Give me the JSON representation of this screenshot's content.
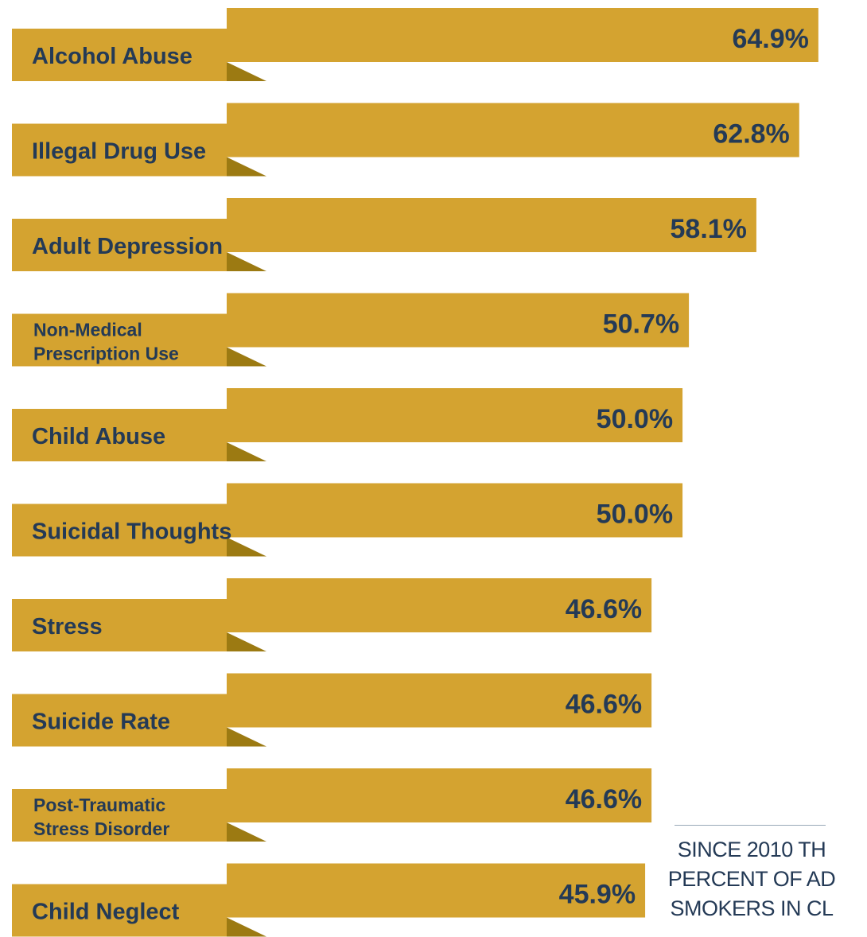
{
  "colors": {
    "bar": "#D4A330",
    "fold": "#9C7A12",
    "text": "#243A56",
    "rule": "#9AA9B8"
  },
  "chart_data": {
    "type": "bar",
    "orientation": "horizontal",
    "title": "",
    "xlabel": "",
    "ylabel": "",
    "xlim": [
      0,
      65
    ],
    "legend": "none",
    "grid": false,
    "categories": [
      "Alcohol Abuse",
      "Illegal Drug Use",
      "Adult Depression",
      "Non-Medical Prescription Use",
      "Child Abuse",
      "Suicidal Thoughts",
      "Stress",
      "Suicide Rate",
      "Post-Traumatic Stress Disorder",
      "Child Neglect"
    ],
    "label_lines": [
      [
        "Alcohol Abuse"
      ],
      [
        "Illegal Drug Use"
      ],
      [
        "Adult Depression"
      ],
      [
        "Non-Medical",
        "Prescription Use"
      ],
      [
        "Child Abuse"
      ],
      [
        "Suicidal Thoughts"
      ],
      [
        "Stress"
      ],
      [
        "Suicide Rate"
      ],
      [
        "Post-Traumatic",
        "Stress Disorder"
      ],
      [
        "Child Neglect"
      ]
    ],
    "values": [
      64.9,
      62.8,
      58.1,
      50.7,
      50.0,
      50.0,
      46.6,
      46.6,
      46.6,
      45.9
    ],
    "value_labels": [
      "64.9%",
      "62.8%",
      "58.1%",
      "50.7%",
      "50.0%",
      "50.0%",
      "46.6%",
      "46.6%",
      "46.6%",
      "45.9%"
    ]
  },
  "annotation": {
    "lines": [
      "SINCE 2010 TH",
      "PERCENT OF AD",
      "SMOKERS IN CL"
    ]
  }
}
